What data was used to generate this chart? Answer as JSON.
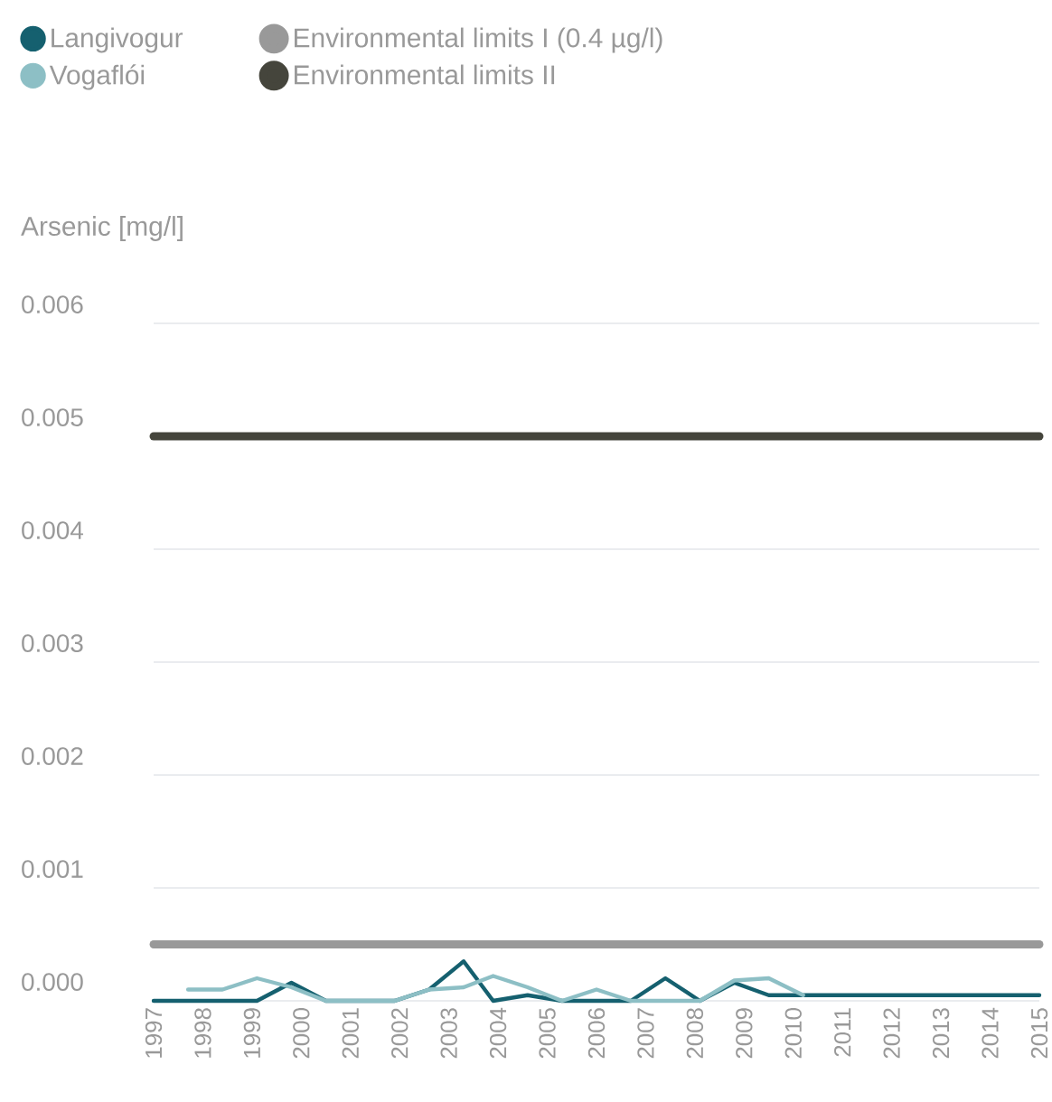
{
  "chart_data": {
    "type": "line",
    "ylabel": "Arsenic [mg/l]",
    "legend": "top left",
    "grid": "y",
    "marker": "none",
    "line_style": "solid",
    "xlim": [
      1997,
      2015
    ],
    "xticks": [
      1997,
      1998,
      1999,
      2000,
      2001,
      2002,
      2003,
      2004,
      2005,
      2006,
      2007,
      2008,
      2009,
      2010,
      2011,
      2012,
      2013,
      2014,
      2015
    ],
    "ylim": [
      0,
      0.006
    ],
    "yticks": [
      {
        "value": 0,
        "label": "0.000"
      },
      0.001,
      0.002,
      0.003,
      0.004,
      0.005,
      0.006
    ],
    "series": [
      {
        "name": "Langivogur",
        "color": "#15606f",
        "x": [
          1997,
          1999.1,
          1999.8,
          2000.5,
          2001.9,
          2002.6,
          2003.3,
          2003.9,
          2004.6,
          2005.3,
          2006,
          2006.7,
          2007.4,
          2008.1,
          2008.8,
          2009.5,
          2015
        ],
        "values": [
          0,
          0,
          0.00016,
          0,
          0,
          0.0001,
          0.00035,
          0,
          5e-05,
          0,
          0,
          0,
          0.0002,
          0,
          0.00016,
          5e-05,
          5e-05
        ]
      },
      {
        "name": "Vogaflói",
        "color": "#8dbfc5",
        "x": [
          1997.7,
          1998.4,
          1999.1,
          1999.8,
          2000.5,
          2001.9,
          2002.6,
          2003.3,
          2003.9,
          2004.6,
          2005.3,
          2006,
          2006.7,
          2008.1,
          2008.8,
          2009.5,
          2010.2
        ],
        "values": [
          0.0001,
          0.0001,
          0.0002,
          0.00012,
          0,
          0,
          0.0001,
          0.00012,
          0.00022,
          0.00012,
          0,
          0.0001,
          0,
          0,
          0.00018,
          0.0002,
          5e-05
        ]
      },
      {
        "name": "Environmental limits I (0.4 µg/l)",
        "color": "#999999",
        "x": [
          1997,
          2015
        ],
        "values": [
          0.0005,
          0.0005
        ]
      },
      {
        "name": "Environmental limits II",
        "color": "#45453c",
        "x": [
          1997,
          2015
        ],
        "values": [
          0.005,
          0.005
        ]
      }
    ]
  }
}
